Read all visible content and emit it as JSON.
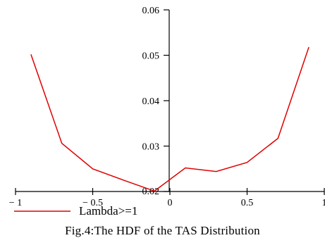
{
  "caption": "Fig.4:The HDF of the TAS Distribution",
  "colors": {
    "series": "#e00000",
    "axis": "#000000"
  },
  "chart_data": {
    "type": "line",
    "title": "",
    "xlabel": "",
    "ylabel": "",
    "xlim": [
      -1,
      1
    ],
    "ylim": [
      0.02,
      0.06
    ],
    "x_ticks": [
      -1,
      -0.5,
      0,
      0.5,
      1
    ],
    "x_tick_labels": [
      "− 1",
      "− 0.5",
      "0",
      "0.5",
      "1"
    ],
    "y_ticks": [
      0.02,
      0.03,
      0.04,
      0.05,
      0.06
    ],
    "y_tick_labels": [
      "0.02",
      "0.03",
      "0.04",
      "0.05",
      "0.06"
    ],
    "grid": false,
    "legend_position": "bottom-left",
    "series": [
      {
        "name": "Lambda>=1",
        "x": [
          -0.9,
          -0.7,
          -0.5,
          -0.3,
          -0.1,
          0.1,
          0.3,
          0.5,
          0.7,
          0.9
        ],
        "y": [
          0.0502,
          0.0306,
          0.025,
          0.0225,
          0.0201,
          0.0252,
          0.0244,
          0.0264,
          0.0317,
          0.0518
        ]
      }
    ]
  }
}
